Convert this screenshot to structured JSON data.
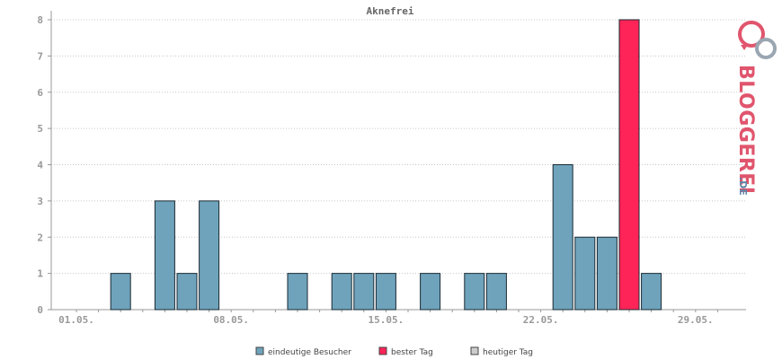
{
  "chart_data": {
    "type": "bar",
    "title": "Aknefrei",
    "categories": [
      "01.05.",
      "02.05.",
      "03.05.",
      "04.05.",
      "05.05.",
      "06.05.",
      "07.05.",
      "08.05.",
      "09.05.",
      "10.05.",
      "11.05.",
      "12.05.",
      "13.05.",
      "14.05.",
      "15.05.",
      "16.05.",
      "17.05.",
      "18.05.",
      "19.05.",
      "20.05.",
      "21.05.",
      "22.05.",
      "23.05.",
      "24.05.",
      "25.05.",
      "26.05.",
      "27.05.",
      "28.05.",
      "29.05.",
      "30.05."
    ],
    "x_tick_labels": [
      "01.05.",
      "08.05.",
      "15.05.",
      "22.05.",
      "29.05."
    ],
    "series": [
      {
        "name": "eindeutige Besucher",
        "color": "#6fa3bc",
        "values": [
          0,
          0,
          1,
          0,
          3,
          1,
          3,
          0,
          0,
          0,
          1,
          0,
          1,
          1,
          1,
          0,
          1,
          0,
          1,
          1,
          0,
          0,
          4,
          2,
          2,
          0,
          1,
          0,
          0,
          0
        ]
      },
      {
        "name": "bester Tag",
        "color": "#ff2457",
        "values": [
          0,
          0,
          0,
          0,
          0,
          0,
          0,
          0,
          0,
          0,
          0,
          0,
          0,
          0,
          0,
          0,
          0,
          0,
          0,
          0,
          0,
          0,
          0,
          0,
          0,
          8,
          0,
          0,
          0,
          0
        ]
      },
      {
        "name": "heutiger Tag",
        "color": "#cccccc",
        "values": [
          0,
          0,
          0,
          0,
          0,
          0,
          0,
          0,
          0,
          0,
          0,
          0,
          0,
          0,
          0,
          0,
          0,
          0,
          0,
          0,
          0,
          0,
          0,
          0,
          0,
          0,
          0,
          0,
          0,
          0
        ]
      }
    ],
    "ylim": [
      0,
      8
    ],
    "y_ticks": [
      "0",
      "1",
      "2",
      "3",
      "4",
      "5",
      "6",
      "7",
      "8"
    ],
    "grid": true,
    "legend_position": "bottom"
  },
  "brand": {
    "name": "BLOGGEREI",
    "suffix": ".DE",
    "color_pink": "#e0556d",
    "color_blue": "#5f86a8",
    "color_grey": "#9aa6b2"
  }
}
